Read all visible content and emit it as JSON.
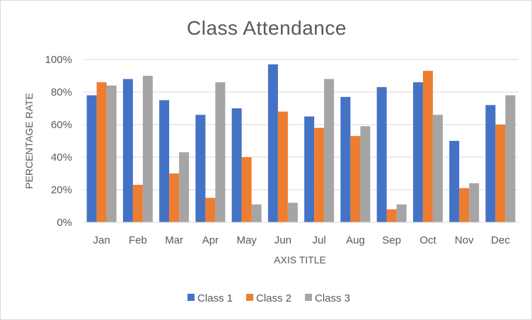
{
  "chart_data": {
    "type": "bar",
    "title": "Class Attendance",
    "xlabel": "AXIS TITLE",
    "ylabel": "PERCENTAGE RATE",
    "ylim": [
      0,
      100
    ],
    "yticks": [
      "0%",
      "20%",
      "40%",
      "60%",
      "80%",
      "100%"
    ],
    "ytick_values": [
      0,
      20,
      40,
      60,
      80,
      100
    ],
    "grid": true,
    "legend_position": "bottom",
    "categories": [
      "Jan",
      "Feb",
      "Mar",
      "Apr",
      "May",
      "Jun",
      "Jul",
      "Aug",
      "Sep",
      "Oct",
      "Nov",
      "Dec"
    ],
    "series": [
      {
        "name": "Class 1",
        "color": "#4472C4",
        "values": [
          78,
          88,
          75,
          66,
          70,
          97,
          65,
          77,
          83,
          86,
          50,
          72
        ]
      },
      {
        "name": "Class 2",
        "color": "#ED7D31",
        "values": [
          86,
          23,
          30,
          15,
          40,
          68,
          58,
          53,
          8,
          93,
          21,
          60
        ]
      },
      {
        "name": "Class 3",
        "color": "#A5A5A5",
        "values": [
          84,
          90,
          43,
          86,
          11,
          12,
          88,
          59,
          11,
          66,
          24,
          78
        ]
      }
    ]
  }
}
